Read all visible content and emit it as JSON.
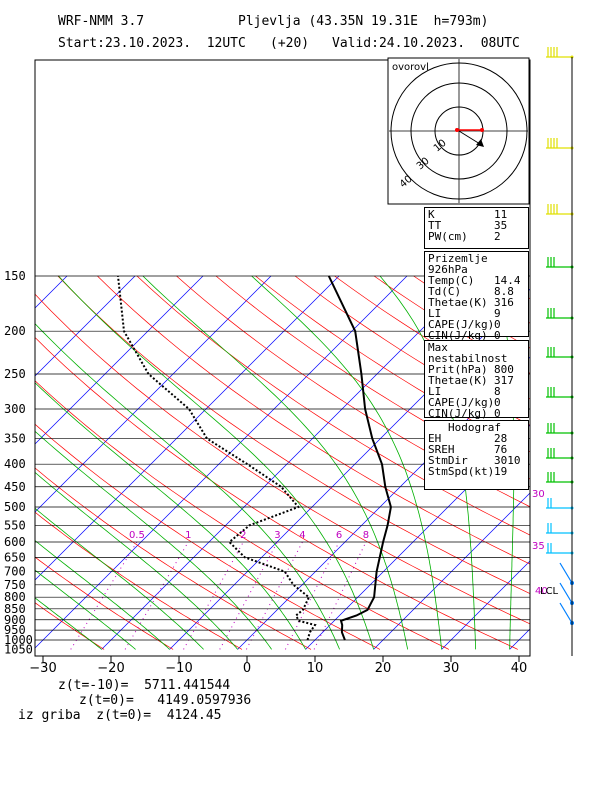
{
  "header": {
    "model": "WRF-NMM 3.7",
    "station": "Pljevlja (43.35N 19.31E  h=793m)",
    "start": "Start:23.10.2023.  12UTC",
    "lead": "(+20)",
    "valid": "Valid:24.10.2023.  08UTC"
  },
  "chart_data": {
    "type": "line",
    "title": "",
    "xlabel": "",
    "ylabel": "",
    "xlim": [
      -30,
      42
    ],
    "ylim": [
      1050,
      150
    ],
    "x_ticks": [
      "-30",
      "-20",
      "-10",
      "0",
      "10",
      "20",
      "30",
      "40"
    ],
    "x_tick_values": [
      -30,
      -20,
      -10,
      0,
      10,
      20,
      30,
      40
    ],
    "p_ticks": [
      "150",
      "200",
      "250",
      "300",
      "350",
      "400",
      "450",
      "500",
      "550",
      "600",
      "650",
      "700",
      "750",
      "800",
      "850",
      "900",
      "950",
      "1000",
      "1050"
    ],
    "p_tick_values": [
      150,
      200,
      250,
      300,
      350,
      400,
      450,
      500,
      550,
      600,
      650,
      700,
      750,
      800,
      850,
      900,
      950,
      1000,
      1050
    ],
    "mixing_ratio_labels": [
      "0.5",
      "1",
      "2",
      "3",
      "4",
      "6",
      "8"
    ],
    "mixing_ratio_values": [
      0.5,
      1,
      2,
      3,
      4,
      6,
      8
    ],
    "series": [
      {
        "name": "",
        "style": "solid",
        "points": [
          [
            14.4,
            1000
          ],
          [
            12.8,
            960
          ],
          [
            11.8,
            925
          ],
          [
            11.0,
            905
          ],
          [
            12.5,
            880
          ],
          [
            13.3,
            855
          ],
          [
            12.4,
            800
          ],
          [
            9.0,
            700
          ],
          [
            5.6,
            600
          ],
          [
            3.8,
            550
          ],
          [
            1.6,
            500
          ],
          [
            -2.2,
            450
          ],
          [
            -6.0,
            400
          ],
          [
            -11.2,
            350
          ],
          [
            -16.6,
            300
          ],
          [
            -22.3,
            250
          ],
          [
            -29.5,
            200
          ],
          [
            -41.5,
            150
          ]
        ]
      },
      {
        "name": "",
        "style": "dotted",
        "points": [
          [
            8.9,
            1000
          ],
          [
            8.1,
            960
          ],
          [
            7.8,
            925
          ],
          [
            4.8,
            905
          ],
          [
            3.6,
            880
          ],
          [
            3.8,
            855
          ],
          [
            2.8,
            800
          ],
          [
            -1.3,
            750
          ],
          [
            -4.5,
            700
          ],
          [
            -12.5,
            650
          ],
          [
            -17.0,
            600
          ],
          [
            -16.5,
            550
          ],
          [
            -12.0,
            500
          ],
          [
            -17.5,
            450
          ],
          [
            -25.8,
            400
          ],
          [
            -35.5,
            350
          ],
          [
            -42.5,
            300
          ],
          [
            -53.6,
            250
          ],
          [
            -63.5,
            200
          ],
          [
            -72.5,
            150
          ]
        ]
      }
    ],
    "hodograph": {
      "title": "ovorovl",
      "ring_labels": [
        "10",
        "30",
        "40"
      ]
    },
    "wind_labels": [
      "30",
      "35",
      "40"
    ],
    "lcl_label": "LCL"
  },
  "indices": {
    "k": {
      "label": "K",
      "value": "11"
    },
    "tt": {
      "label": "TT",
      "value": "35"
    },
    "pw": {
      "label": "PW(cm)",
      "value": "2"
    }
  },
  "surface": {
    "title": "Prizemlje 926hPa",
    "rows": [
      {
        "label": "Temp(C)",
        "value": "14.4"
      },
      {
        "label": "Td(C)",
        "value": "8.8"
      },
      {
        "label": "Thetae(K)",
        "value": "316"
      },
      {
        "label": "LI",
        "value": "9"
      },
      {
        "label": "CAPE(J/kg)",
        "value": "0"
      },
      {
        "label": "CIN(J/kg)",
        "value": "0"
      }
    ]
  },
  "max_unstable": {
    "title": "Max nestabilnost",
    "rows": [
      {
        "label": "Prit(hPa)",
        "value": "800"
      },
      {
        "label": "Thetae(K)",
        "value": "317"
      },
      {
        "label": "LI",
        "value": "8"
      },
      {
        "label": "CAPE(J/kg)",
        "value": "0"
      },
      {
        "label": "CIN(J/kg)",
        "value": "0"
      }
    ]
  },
  "hodograf": {
    "title": "Hodograf",
    "rows": [
      {
        "label": "EH",
        "value": "28"
      },
      {
        "label": "SREH",
        "value": "76"
      },
      {
        "label": "StmDir",
        "value": "3010"
      },
      {
        "label": "StmSpd(kt)",
        "value": "19"
      }
    ]
  },
  "footer": {
    "line1": "z(t=-10)=  5711.441544",
    "line2": "z(t=0)=   4149.0597936",
    "line3": "iz griba  z(t=0)=  4124.45"
  },
  "colors": {
    "isotherm": "#0000ff",
    "dry_adiabat": "#ff0000",
    "moist_adiabat": "#00b000",
    "mixing_ratio": "#c000c0",
    "barbs_upper": "#e0e000",
    "barbs_mid": "#00c000",
    "barbs_low": "#00c0ff",
    "barbs_bottom": "#0080ff"
  }
}
